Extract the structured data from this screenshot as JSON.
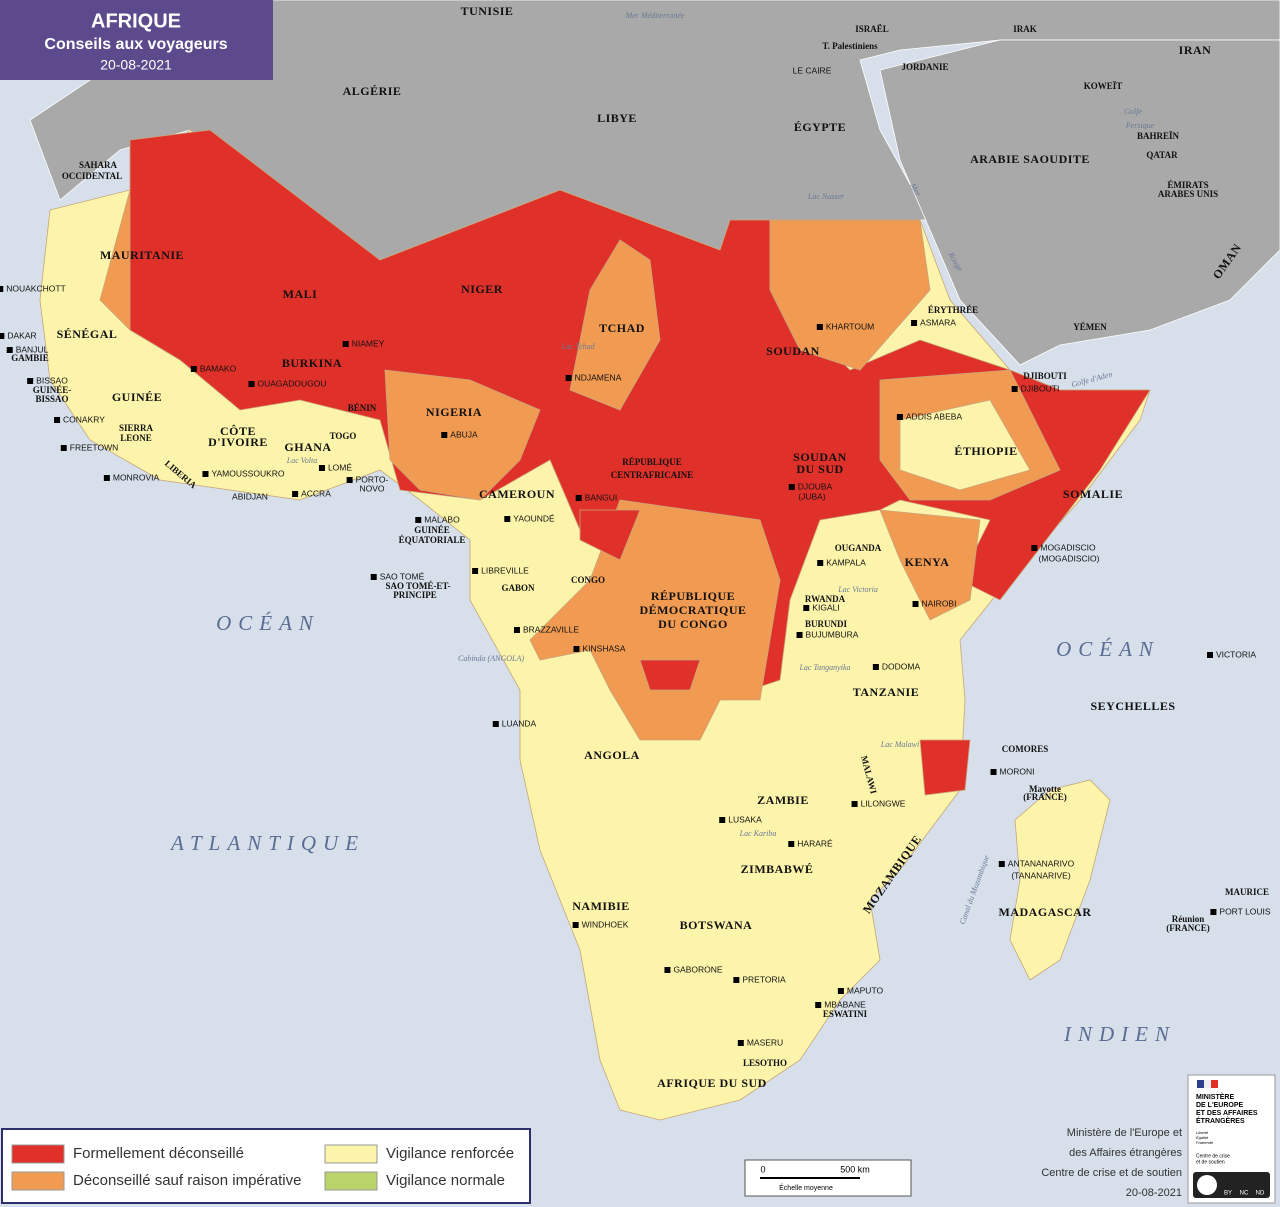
{
  "header": {
    "title": "AFRIQUE",
    "subtitle": "Conseils aux voyageurs",
    "date": "20-08-2021"
  },
  "legend": [
    {
      "label": "Formellement déconseillé",
      "color": "#e0302a"
    },
    {
      "label": "Déconseillé sauf raison impérative",
      "color": "#f19a52"
    },
    {
      "label": "Vigilance renforcée",
      "color": "#fdf4ab"
    },
    {
      "label": "Vigilance normale",
      "color": "#b9d46a"
    }
  ],
  "labels": [
    "TUNISIE",
    "Mer Méditerranée",
    "ISRAËL",
    "T. Palestiniens",
    "JORDANIE",
    "LE CAIRE",
    "IRAK",
    "IRAN",
    "KOWEÏT",
    "Golfe",
    "Persique",
    "BAHREÏN",
    "QATAR",
    "ÉMIRATS",
    "ARABES UNIS",
    "ARABIE SAOUDITE",
    "OMAN",
    "YÉMEN",
    "Mer",
    "Rouge",
    "Golfe d'Aden",
    "ALGÉRIE",
    "LIBYE",
    "ÉGYPTE",
    "Lac Nasser",
    "SAHARA",
    "OCCIDENTAL",
    "MAURITANIE",
    "NOUAKCHOTT",
    "MALI",
    "NIGER",
    "TCHAD",
    "SOUDAN",
    "KHARTOUM",
    "ÉRYTHRÉE",
    "ASMARA",
    "DJIBOUTI",
    "DJIBOUTI",
    "SÉNÉGAL",
    "DAKAR",
    "BANJUL",
    "GAMBIE",
    "BISSAO",
    "GUINÉE-",
    "BISSAO",
    "NIAMEY",
    "BAMAKO",
    "BURKINA",
    "OUAGADOUGOU",
    "Lac Tchad",
    "NDJAMENA",
    "NIGERIA",
    "ABUJA",
    "BÉNIN",
    "TOGO",
    "GUINÉE",
    "CONAKRY",
    "SIERRA",
    "LEONE",
    "FREETOWN",
    "LIBERIA",
    "MONROVIA",
    "CÔTE",
    "D'IVOIRE",
    "YAMOUSSOUKRO",
    "ABIDJAN",
    "GHANA",
    "Lac Volta",
    "ACCRA",
    "LOMÉ",
    "PORTO-",
    "NOVO",
    "ADDIS ABEBA",
    "ÉTHIOPIE",
    "SOMALIE",
    "MOGADISCIO",
    "(MOGADISCIO)",
    "RÉPUBLIQUE",
    "CENTRAFRICAINE",
    "BANGUI",
    "SOUDAN",
    "DU SUD",
    "DJOUBA",
    "(JUBA)",
    "CAMEROUN",
    "YAOUNDÉ",
    "MALABO",
    "GUINÉE",
    "ÉQUATORIALE",
    "SAO TOMÉ",
    "SAO TOMÉ-ET-",
    "PRINCIPE",
    "LIBREVILLE",
    "GABON",
    "CONGO",
    "BRAZZAVILLE",
    "KINSHASA",
    "Cabinda (ANGOLA)",
    "RÉPUBLIQUE",
    "DÉMOCRATIQUE",
    "DU CONGO",
    "OUGANDA",
    "KAMPALA",
    "Lac Victoria",
    "KENYA",
    "NAIROBI",
    "RWANDA",
    "KIGALI",
    "BURUNDI",
    "BUJUMBURA",
    "Lac Tanganyika",
    "DODOMA",
    "TANZANIE",
    "ANGOLA",
    "LUANDA",
    "Lac Malawi",
    "MALAWI",
    "ZAMBIE",
    "LUSAKA",
    "LILONGWE",
    "Lac Kariba",
    "HARARÉ",
    "ZIMBABWÉ",
    "MOZAMBIQUE",
    "NAMIBIE",
    "WINDHOEK",
    "BOTSWANA",
    "GABORONE",
    "PRETORIA",
    "MAPUTO",
    "MBABANE",
    "ESWATINI",
    "MASERU",
    "LESOTHO",
    "AFRIQUE DU SUD",
    "COMORES",
    "MORONI",
    "Mayotte",
    "(FRANCE)",
    "SEYCHELLES",
    "VICTORIA",
    "ANTANANARIVO",
    "(TANANARIVE)",
    "MADAGASCAR",
    "MAURICE",
    "PORT LOUIS",
    "Réunion",
    "(FRANCE)",
    "Canal du Mozambique",
    "OCÉAN",
    "ATLANTIQUE",
    "OCÉAN",
    "INDIEN"
  ],
  "scale": {
    "zero": "0",
    "distance": "500 km",
    "caption": "Échelle moyenne"
  },
  "credits": [
    "Ministère de l'Europe et",
    "des Affaires étrangères",
    "Centre de crise et de soutien",
    "20-08-2021"
  ],
  "logo": {
    "lines": [
      "MINISTÈRE",
      "DE L'EUROPE",
      "ET DES AFFAIRES",
      "ÉTRANGÈRES"
    ],
    "motto": [
      "Liberté",
      "Égalité",
      "Fraternité"
    ],
    "unit": [
      "Centre de crise",
      "et de soutien"
    ],
    "license": [
      "BY",
      "NC",
      "ND"
    ]
  }
}
